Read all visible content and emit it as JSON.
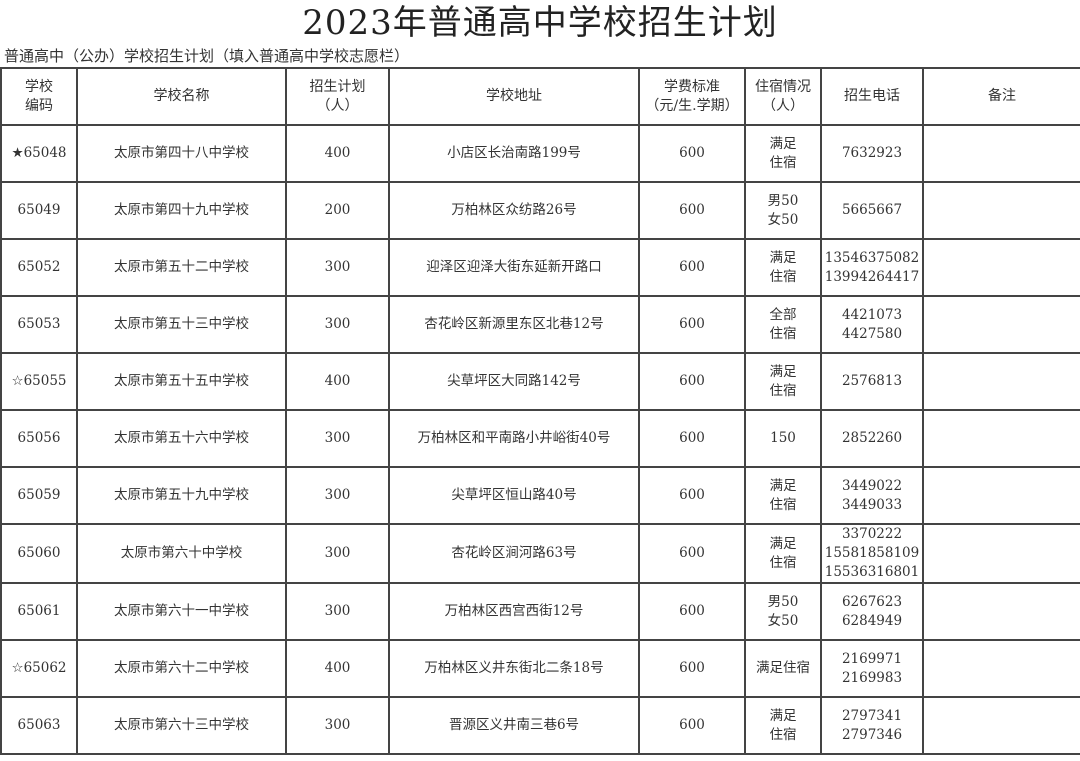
{
  "title": "2023年普通高中学校招生计划",
  "subtitle": "普通高中（公办）学校招生计划（填入普通高中学校志愿栏）",
  "columns": [
    "学校\n编码",
    "学校名称",
    "招生计划\n（人）",
    "学校地址",
    "学费标准\n（元/生.学期）",
    "住宿情况\n（人）",
    "招生电话",
    "备注"
  ],
  "rows": [
    {
      "code": "★65048",
      "name": "太原市第四十八中学校",
      "plan": "400",
      "address": "小店区长治南路199号",
      "fee": "600",
      "dorm": "满足\n住宿",
      "phone": "7632923",
      "note": ""
    },
    {
      "code": "65049",
      "name": "太原市第四十九中学校",
      "plan": "200",
      "address": "万柏林区众纺路26号",
      "fee": "600",
      "dorm": "男50\n女50",
      "phone": "5665667",
      "note": ""
    },
    {
      "code": "65052",
      "name": "太原市第五十二中学校",
      "plan": "300",
      "address": "迎泽区迎泽大街东延新开路口",
      "fee": "600",
      "dorm": "满足\n住宿",
      "phone": "13546375082\n13994264417",
      "note": ""
    },
    {
      "code": "65053",
      "name": "太原市第五十三中学校",
      "plan": "300",
      "address": "杏花岭区新源里东区北巷12号",
      "fee": "600",
      "dorm": "全部\n住宿",
      "phone": "4421073\n4427580",
      "note": ""
    },
    {
      "code": "☆65055",
      "name": "太原市第五十五中学校",
      "plan": "400",
      "address": "尖草坪区大同路142号",
      "fee": "600",
      "dorm": "满足\n住宿",
      "phone": "2576813",
      "note": ""
    },
    {
      "code": "65056",
      "name": "太原市第五十六中学校",
      "plan": "300",
      "address": "万柏林区和平南路小井峪街40号",
      "fee": "600",
      "dorm": "150",
      "phone": "2852260",
      "note": ""
    },
    {
      "code": "65059",
      "name": "太原市第五十九中学校",
      "plan": "300",
      "address": "尖草坪区恒山路40号",
      "fee": "600",
      "dorm": "满足\n住宿",
      "phone": "3449022\n3449033",
      "note": ""
    },
    {
      "code": "65060",
      "name": "太原市第六十中学校",
      "plan": "300",
      "address": "杏花岭区涧河路63号",
      "fee": "600",
      "dorm": "满足\n住宿",
      "phone": "3370222\n15581858109\n15536316801",
      "note": ""
    },
    {
      "code": "65061",
      "name": "太原市第六十一中学校",
      "plan": "300",
      "address": "万柏林区西宫西街12号",
      "fee": "600",
      "dorm": "男50\n女50",
      "phone": "6267623\n6284949",
      "note": ""
    },
    {
      "code": "☆65062",
      "name": "太原市第六十二中学校",
      "plan": "400",
      "address": "万柏林区义井东街北二条18号",
      "fee": "600",
      "dorm": "满足住宿",
      "phone": "2169971\n2169983",
      "note": ""
    },
    {
      "code": "65063",
      "name": "太原市第六十三中学校",
      "plan": "300",
      "address": "晋源区义井南三巷6号",
      "fee": "600",
      "dorm": "满足\n住宿",
      "phone": "2797341\n2797346",
      "note": ""
    }
  ]
}
